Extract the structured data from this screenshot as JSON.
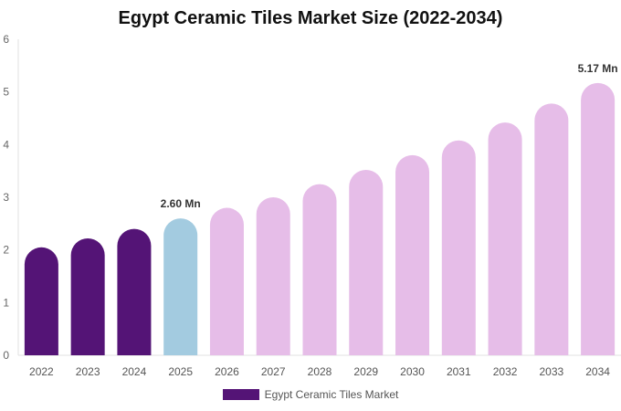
{
  "chart_data": {
    "type": "bar",
    "title": "Egypt Ceramic Tiles Market Size (2022-2034)",
    "categories": [
      "2022",
      "2023",
      "2024",
      "2025",
      "2026",
      "2027",
      "2028",
      "2029",
      "2030",
      "2031",
      "2032",
      "2033",
      "2034"
    ],
    "series": [
      {
        "name": "Egypt Ceramic Tiles Market",
        "values": [
          2.05,
          2.22,
          2.4,
          2.6,
          2.8,
          3.0,
          3.25,
          3.52,
          3.8,
          4.08,
          4.42,
          4.78,
          5.17
        ]
      }
    ],
    "data_labels": [
      {
        "category": "2025",
        "text": "2.60 Mn"
      },
      {
        "category": "2034",
        "text": "5.17 Mn"
      }
    ],
    "ylim": [
      0,
      6
    ],
    "yticks": [
      "0",
      "1",
      "2",
      "3",
      "4",
      "5",
      "6"
    ],
    "xlabel": "",
    "ylabel": "",
    "grid": false,
    "legend_position": "bottom",
    "colors": {
      "historical": "#541476",
      "current": "#a3cbe0",
      "forecast": "#e6bde8",
      "legend_swatch": "#541476"
    },
    "bar_color_groups": [
      "historical",
      "historical",
      "historical",
      "current",
      "forecast",
      "forecast",
      "forecast",
      "forecast",
      "forecast",
      "forecast",
      "forecast",
      "forecast",
      "forecast"
    ]
  }
}
